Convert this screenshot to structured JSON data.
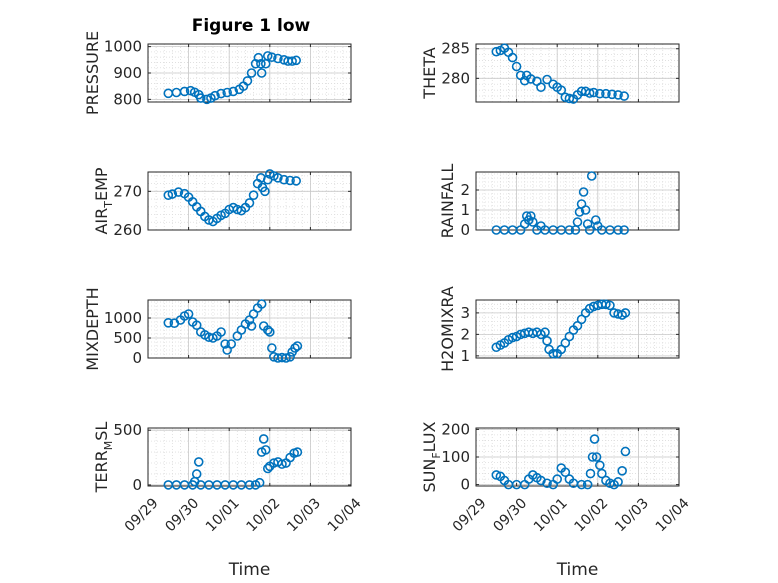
{
  "figure": {
    "title": "Figure 1 low",
    "marker_color": "#0072BD"
  },
  "chart_data": [
    {
      "type": "scatter",
      "name_key": "pressure",
      "ylabel_main": "PRESSURE",
      "ylabel_sub": "",
      "ylabel_tail": "",
      "ylim": [
        790,
        1010
      ],
      "yticks": [
        800,
        900,
        1000
      ],
      "ytick_labels": [
        "800",
        "900",
        "1000"
      ],
      "xlim": [
        0,
        5
      ],
      "xticks": [
        0,
        1,
        2,
        3,
        4,
        5
      ],
      "xtick_labels": [
        "09/29",
        "09/30",
        "10/01",
        "10/02",
        "10/03",
        "10/04"
      ],
      "show_xticklabels": false,
      "grid": true,
      "minor_grid": true,
      "xlabel": "",
      "points": [
        [
          0.5,
          823
        ],
        [
          0.7,
          826
        ],
        [
          0.9,
          830
        ],
        [
          1.05,
          833
        ],
        [
          1.15,
          827
        ],
        [
          1.25,
          818
        ],
        [
          1.3,
          805
        ],
        [
          1.45,
          800
        ],
        [
          1.55,
          805
        ],
        [
          1.65,
          814
        ],
        [
          1.8,
          822
        ],
        [
          1.95,
          826
        ],
        [
          2.1,
          830
        ],
        [
          2.25,
          838
        ],
        [
          2.35,
          850
        ],
        [
          2.45,
          870
        ],
        [
          2.55,
          900
        ],
        [
          2.65,
          935
        ],
        [
          2.72,
          958
        ],
        [
          2.78,
          935
        ],
        [
          2.8,
          900
        ],
        [
          2.9,
          935
        ],
        [
          2.95,
          965
        ],
        [
          3.05,
          960
        ],
        [
          3.2,
          955
        ],
        [
          3.35,
          950
        ],
        [
          3.45,
          945
        ],
        [
          3.55,
          945
        ],
        [
          3.65,
          948
        ]
      ]
    },
    {
      "type": "scatter",
      "name_key": "theta",
      "ylabel_main": "THETA",
      "ylabel_sub": "",
      "ylabel_tail": "",
      "ylim": [
        276,
        285.8
      ],
      "yticks": [
        280,
        285
      ],
      "ytick_labels": [
        "280",
        "285"
      ],
      "xlim": [
        0,
        5
      ],
      "xticks": [
        0,
        1,
        2,
        3,
        4,
        5
      ],
      "xtick_labels": [
        "09/29",
        "09/30",
        "10/01",
        "10/02",
        "10/03",
        "10/04"
      ],
      "show_xticklabels": false,
      "grid": true,
      "minor_grid": true,
      "xlabel": "",
      "points": [
        [
          0.5,
          284.5
        ],
        [
          0.6,
          284.7
        ],
        [
          0.7,
          285.1
        ],
        [
          0.8,
          284.4
        ],
        [
          0.9,
          283.5
        ],
        [
          1.0,
          282.0
        ],
        [
          1.1,
          280.5
        ],
        [
          1.2,
          279.6
        ],
        [
          1.25,
          280.5
        ],
        [
          1.35,
          279.9
        ],
        [
          1.5,
          279.5
        ],
        [
          1.6,
          278.5
        ],
        [
          1.75,
          279.8
        ],
        [
          1.9,
          279.0
        ],
        [
          2.0,
          278.5
        ],
        [
          2.1,
          278.0
        ],
        [
          2.2,
          276.8
        ],
        [
          2.3,
          276.6
        ],
        [
          2.4,
          276.5
        ],
        [
          2.5,
          277.2
        ],
        [
          2.6,
          277.8
        ],
        [
          2.7,
          277.8
        ],
        [
          2.8,
          277.5
        ],
        [
          2.9,
          277.6
        ],
        [
          3.05,
          277.4
        ],
        [
          3.2,
          277.4
        ],
        [
          3.35,
          277.3
        ],
        [
          3.5,
          277.2
        ],
        [
          3.65,
          277.0
        ]
      ]
    },
    {
      "type": "scatter",
      "name_key": "air_temp",
      "ylabel_main": "AIR",
      "ylabel_sub": "T",
      "ylabel_tail": "EMP",
      "ylim": [
        260,
        275
      ],
      "yticks": [
        260,
        270
      ],
      "ytick_labels": [
        "260",
        "270"
      ],
      "xlim": [
        0,
        5
      ],
      "xticks": [
        0,
        1,
        2,
        3,
        4,
        5
      ],
      "xtick_labels": [
        "09/29",
        "09/30",
        "10/01",
        "10/02",
        "10/03",
        "10/04"
      ],
      "show_xticklabels": false,
      "grid": true,
      "minor_grid": true,
      "xlabel": "",
      "points": [
        [
          0.5,
          269.0
        ],
        [
          0.6,
          269.3
        ],
        [
          0.75,
          269.8
        ],
        [
          0.9,
          269.4
        ],
        [
          1.0,
          268.5
        ],
        [
          1.1,
          267.3
        ],
        [
          1.2,
          266.0
        ],
        [
          1.3,
          264.8
        ],
        [
          1.4,
          263.5
        ],
        [
          1.5,
          262.6
        ],
        [
          1.6,
          262.2
        ],
        [
          1.7,
          263.0
        ],
        [
          1.8,
          263.8
        ],
        [
          1.9,
          264.3
        ],
        [
          2.0,
          265.3
        ],
        [
          2.1,
          265.8
        ],
        [
          2.2,
          265.3
        ],
        [
          2.3,
          265.0
        ],
        [
          2.4,
          265.8
        ],
        [
          2.5,
          267.0
        ],
        [
          2.6,
          269.0
        ],
        [
          2.7,
          272.0
        ],
        [
          2.78,
          273.5
        ],
        [
          2.82,
          271.0
        ],
        [
          2.88,
          270.0
        ],
        [
          2.95,
          273.0
        ],
        [
          3.0,
          274.5
        ],
        [
          3.1,
          274.0
        ],
        [
          3.2,
          273.5
        ],
        [
          3.35,
          273.0
        ],
        [
          3.5,
          272.8
        ],
        [
          3.65,
          272.7
        ]
      ]
    },
    {
      "type": "scatter",
      "name_key": "rainfall",
      "ylabel_main": "RAINFALL",
      "ylabel_sub": "",
      "ylabel_tail": "",
      "ylim": [
        0,
        2.9
      ],
      "yticks": [
        0,
        1,
        2
      ],
      "ytick_labels": [
        "0",
        "1",
        "2"
      ],
      "xlim": [
        0,
        5
      ],
      "xticks": [
        0,
        1,
        2,
        3,
        4,
        5
      ],
      "xtick_labels": [
        "09/29",
        "09/30",
        "10/01",
        "10/02",
        "10/03",
        "10/04"
      ],
      "show_xticklabels": false,
      "grid": true,
      "minor_grid": true,
      "xlabel": "",
      "points": [
        [
          0.5,
          0
        ],
        [
          0.7,
          0
        ],
        [
          0.9,
          0
        ],
        [
          1.1,
          0
        ],
        [
          1.2,
          0.3
        ],
        [
          1.25,
          0.7
        ],
        [
          1.3,
          0.5
        ],
        [
          1.35,
          0.7
        ],
        [
          1.4,
          0.4
        ],
        [
          1.5,
          0
        ],
        [
          1.6,
          0.2
        ],
        [
          1.7,
          0
        ],
        [
          1.9,
          0
        ],
        [
          2.1,
          0
        ],
        [
          2.3,
          0
        ],
        [
          2.45,
          0
        ],
        [
          2.5,
          0.4
        ],
        [
          2.55,
          0.9
        ],
        [
          2.6,
          1.3
        ],
        [
          2.65,
          1.9
        ],
        [
          2.7,
          1.0
        ],
        [
          2.75,
          0.3
        ],
        [
          2.8,
          0
        ],
        [
          2.85,
          2.7
        ],
        [
          2.95,
          0.5
        ],
        [
          3.0,
          0.2
        ],
        [
          3.1,
          0
        ],
        [
          3.3,
          0
        ],
        [
          3.5,
          0
        ],
        [
          3.65,
          0
        ]
      ]
    },
    {
      "type": "scatter",
      "name_key": "mixdepth",
      "ylabel_main": "MIXDEPTH",
      "ylabel_sub": "",
      "ylabel_tail": "",
      "ylim": [
        0,
        1450
      ],
      "yticks": [
        0,
        500,
        1000
      ],
      "ytick_labels": [
        "0",
        "500",
        "1000"
      ],
      "xlim": [
        0,
        5
      ],
      "xticks": [
        0,
        1,
        2,
        3,
        4,
        5
      ],
      "xtick_labels": [
        "09/29",
        "09/30",
        "10/01",
        "10/02",
        "10/03",
        "10/04"
      ],
      "show_xticklabels": false,
      "grid": true,
      "minor_grid": true,
      "xlabel": "",
      "points": [
        [
          0.5,
          880
        ],
        [
          0.65,
          870
        ],
        [
          0.8,
          950
        ],
        [
          0.9,
          1050
        ],
        [
          1.0,
          1100
        ],
        [
          1.1,
          900
        ],
        [
          1.2,
          820
        ],
        [
          1.3,
          650
        ],
        [
          1.4,
          580
        ],
        [
          1.5,
          520
        ],
        [
          1.6,
          500
        ],
        [
          1.7,
          550
        ],
        [
          1.8,
          650
        ],
        [
          1.9,
          350
        ],
        [
          1.95,
          200
        ],
        [
          2.05,
          350
        ],
        [
          2.2,
          550
        ],
        [
          2.3,
          700
        ],
        [
          2.4,
          850
        ],
        [
          2.5,
          950
        ],
        [
          2.55,
          800
        ],
        [
          2.6,
          1100
        ],
        [
          2.7,
          1250
        ],
        [
          2.8,
          1350
        ],
        [
          2.85,
          800
        ],
        [
          2.95,
          700
        ],
        [
          3.0,
          650
        ],
        [
          3.05,
          250
        ],
        [
          3.1,
          30
        ],
        [
          3.2,
          0
        ],
        [
          3.3,
          10
        ],
        [
          3.4,
          0
        ],
        [
          3.5,
          30
        ],
        [
          3.55,
          150
        ],
        [
          3.62,
          250
        ],
        [
          3.68,
          300
        ]
      ]
    },
    {
      "type": "scatter",
      "name_key": "h2omixra",
      "ylabel_main": "H2OMIXRA",
      "ylabel_sub": "",
      "ylabel_tail": "",
      "ylim": [
        0.9,
        3.6
      ],
      "yticks": [
        1,
        2,
        3
      ],
      "ytick_labels": [
        "1",
        "2",
        "3"
      ],
      "xlim": [
        0,
        5
      ],
      "xticks": [
        0,
        1,
        2,
        3,
        4,
        5
      ],
      "xtick_labels": [
        "09/29",
        "09/30",
        "10/01",
        "10/02",
        "10/03",
        "10/04"
      ],
      "show_xticklabels": false,
      "grid": true,
      "minor_grid": true,
      "xlabel": "",
      "points": [
        [
          0.5,
          1.4
        ],
        [
          0.6,
          1.5
        ],
        [
          0.7,
          1.6
        ],
        [
          0.8,
          1.75
        ],
        [
          0.9,
          1.85
        ],
        [
          1.0,
          1.9
        ],
        [
          1.1,
          2.0
        ],
        [
          1.2,
          2.05
        ],
        [
          1.3,
          2.1
        ],
        [
          1.4,
          2.05
        ],
        [
          1.5,
          2.1
        ],
        [
          1.6,
          2.0
        ],
        [
          1.7,
          2.1
        ],
        [
          1.75,
          1.7
        ],
        [
          1.8,
          1.3
        ],
        [
          1.9,
          1.1
        ],
        [
          2.0,
          1.1
        ],
        [
          2.1,
          1.3
        ],
        [
          2.2,
          1.6
        ],
        [
          2.3,
          1.9
        ],
        [
          2.4,
          2.2
        ],
        [
          2.5,
          2.4
        ],
        [
          2.6,
          2.7
        ],
        [
          2.7,
          3.0
        ],
        [
          2.8,
          3.2
        ],
        [
          2.9,
          3.3
        ],
        [
          3.0,
          3.35
        ],
        [
          3.1,
          3.4
        ],
        [
          3.2,
          3.4
        ],
        [
          3.3,
          3.35
        ],
        [
          3.4,
          3.0
        ],
        [
          3.5,
          2.95
        ],
        [
          3.6,
          2.9
        ],
        [
          3.68,
          3.0
        ]
      ]
    },
    {
      "type": "scatter",
      "name_key": "terr_msl",
      "ylabel_main": "TERR",
      "ylabel_sub": "M",
      "ylabel_tail": "SL",
      "ylim": [
        -10,
        520
      ],
      "yticks": [
        0,
        500
      ],
      "ytick_labels": [
        "0",
        "500"
      ],
      "xlim": [
        0,
        5
      ],
      "xticks": [
        0,
        1,
        2,
        3,
        4,
        5
      ],
      "xtick_labels": [
        "09/29",
        "09/30",
        "10/01",
        "10/02",
        "10/03",
        "10/04"
      ],
      "show_xticklabels": true,
      "grid": true,
      "minor_grid": true,
      "xlabel": "Time",
      "points": [
        [
          0.5,
          0
        ],
        [
          0.7,
          0
        ],
        [
          0.9,
          0
        ],
        [
          1.1,
          0
        ],
        [
          1.15,
          30
        ],
        [
          1.2,
          100
        ],
        [
          1.25,
          210
        ],
        [
          1.3,
          0
        ],
        [
          1.5,
          0
        ],
        [
          1.7,
          0
        ],
        [
          1.9,
          0
        ],
        [
          2.1,
          0
        ],
        [
          2.3,
          0
        ],
        [
          2.5,
          0
        ],
        [
          2.65,
          0
        ],
        [
          2.75,
          20
        ],
        [
          2.8,
          300
        ],
        [
          2.85,
          420
        ],
        [
          2.9,
          320
        ],
        [
          2.95,
          150
        ],
        [
          3.0,
          170
        ],
        [
          3.1,
          200
        ],
        [
          3.2,
          210
        ],
        [
          3.3,
          190
        ],
        [
          3.4,
          200
        ],
        [
          3.5,
          250
        ],
        [
          3.6,
          290
        ],
        [
          3.68,
          300
        ]
      ]
    },
    {
      "type": "scatter",
      "name_key": "sun_flux",
      "ylabel_main": "SUN",
      "ylabel_sub": "F",
      "ylabel_tail": "LUX",
      "ylim": [
        -5,
        205
      ],
      "yticks": [
        0,
        100,
        200
      ],
      "ytick_labels": [
        "0",
        "100",
        "200"
      ],
      "xlim": [
        0,
        5
      ],
      "xticks": [
        0,
        1,
        2,
        3,
        4,
        5
      ],
      "xtick_labels": [
        "09/29",
        "09/30",
        "10/01",
        "10/02",
        "10/03",
        "10/04"
      ],
      "show_xticklabels": true,
      "grid": true,
      "minor_grid": true,
      "xlabel": "Time",
      "points": [
        [
          0.5,
          35
        ],
        [
          0.6,
          30
        ],
        [
          0.7,
          15
        ],
        [
          0.8,
          0
        ],
        [
          1.0,
          0
        ],
        [
          1.2,
          0
        ],
        [
          1.3,
          20
        ],
        [
          1.4,
          35
        ],
        [
          1.5,
          25
        ],
        [
          1.6,
          15
        ],
        [
          1.75,
          5
        ],
        [
          1.9,
          0
        ],
        [
          2.0,
          20
        ],
        [
          2.1,
          60
        ],
        [
          2.2,
          45
        ],
        [
          2.3,
          20
        ],
        [
          2.4,
          5
        ],
        [
          2.6,
          0
        ],
        [
          2.75,
          0
        ],
        [
          2.82,
          40
        ],
        [
          2.87,
          100
        ],
        [
          2.92,
          165
        ],
        [
          2.97,
          100
        ],
        [
          3.05,
          70
        ],
        [
          3.1,
          40
        ],
        [
          3.2,
          15
        ],
        [
          3.3,
          5
        ],
        [
          3.4,
          0
        ],
        [
          3.5,
          10
        ],
        [
          3.6,
          50
        ],
        [
          3.68,
          120
        ]
      ]
    }
  ]
}
